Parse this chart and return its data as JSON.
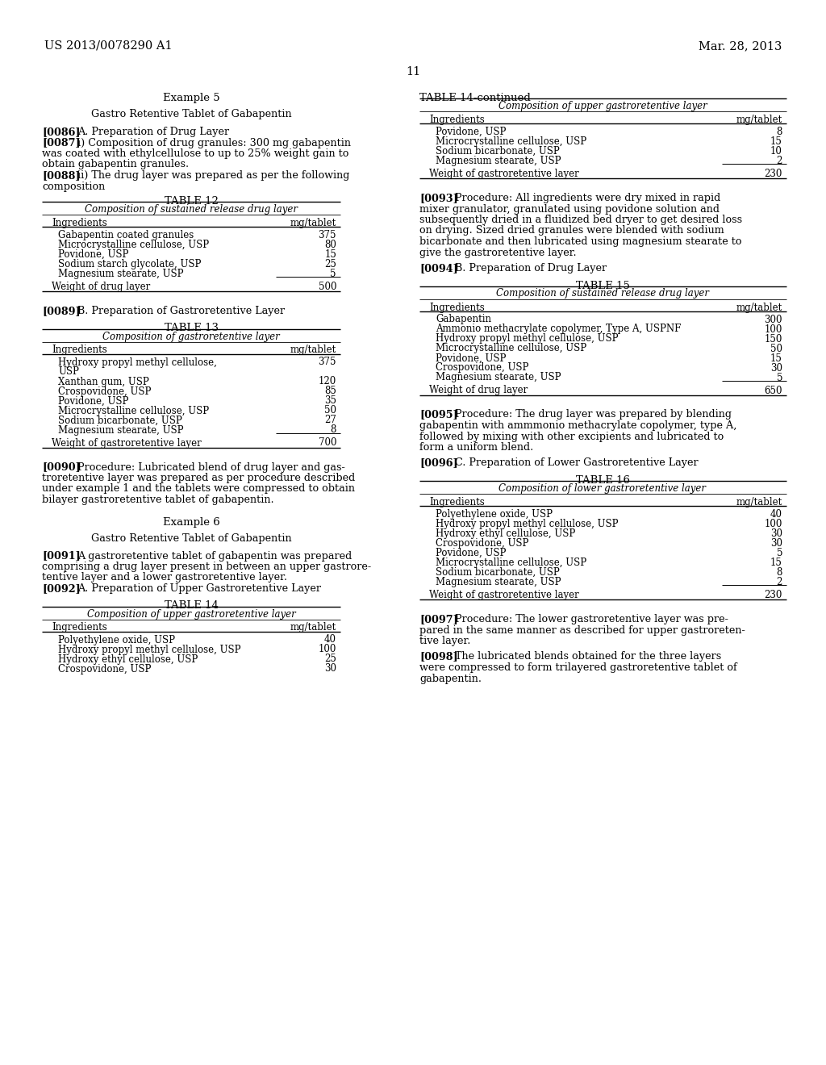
{
  "bg_color": "#ffffff",
  "header_left": "US 2013/0078290 A1",
  "header_right": "Mar. 28, 2013",
  "page_number": "11",
  "left_col": {
    "example_title": "Example 5",
    "subtitle": "Gastro Retentive Tablet of Gabapentin",
    "p0086_tag": "[0086]",
    "p0086_text": "A. Preparation of Drug Layer",
    "p0087_tag": "[0087]",
    "p0087_lines": [
      "i) Composition of drug granules: 300 mg gabapentin",
      "was coated with ethylcellulose to up to 25% weight gain to",
      "obtain gabapentin granules."
    ],
    "p0088_tag": "[0088]",
    "p0088_lines": [
      "ii) The drug layer was prepared as per the following",
      "composition"
    ],
    "table12_title": "TABLE 12",
    "table12_subtitle": "Composition of sustained release drug layer",
    "table12_col1": "Ingredients",
    "table12_col2": "mg/tablet",
    "table12_rows": [
      [
        "Gabapentin coated granules",
        "375"
      ],
      [
        "Microcrystalline cellulose, USP",
        "80"
      ],
      [
        "Povidone, USP",
        "15"
      ],
      [
        "Sodium starch glycolate, USP",
        "25"
      ],
      [
        "Magnesium stearate, USP",
        "5"
      ]
    ],
    "table12_total_label": "Weight of drug layer",
    "table12_total_value": "500",
    "p0089_tag": "[0089]",
    "p0089_text": "B. Preparation of Gastroretentive Layer",
    "table13_title": "TABLE 13",
    "table13_subtitle": "Composition of gastroretentive layer",
    "table13_col1": "Ingredients",
    "table13_col2": "mg/tablet",
    "table13_rows": [
      [
        "Hydroxy propyl methyl cellulose,",
        "375"
      ],
      [
        "USP",
        ""
      ],
      [
        "Xanthan gum, USP",
        "120"
      ],
      [
        "Crospovidone, USP",
        "85"
      ],
      [
        "Povidone, USP",
        "35"
      ],
      [
        "Microcrystalline cellulose, USP",
        "50"
      ],
      [
        "Sodium bicarbonate, USP",
        "27"
      ],
      [
        "Magnesium stearate, USP",
        "8"
      ]
    ],
    "table13_total_label": "Weight of gastroretentive layer",
    "table13_total_value": "700",
    "p0090_tag": "[0090]",
    "p0090_lines": [
      "Procedure: Lubricated blend of drug layer and gas-",
      "troretentive layer was prepared as per procedure described",
      "under example 1 and the tablets were compressed to obtain",
      "bilayer gastroretentive tablet of gabapentin."
    ],
    "example6_title": "Example 6",
    "subtitle6": "Gastro Retentive Tablet of Gabapentin",
    "p0091_tag": "[0091]",
    "p0091_lines": [
      "A gastroretentive tablet of gabapentin was prepared",
      "comprising a drug layer present in between an upper gastrore-",
      "tentive layer and a lower gastroretentive layer."
    ],
    "p0092_tag": "[0092]",
    "p0092_text": "A. Preparation of Upper Gastroretentive Layer",
    "table14_title": "TABLE 14",
    "table14_subtitle": "Composition of upper gastroretentive layer",
    "table14_col1": "Ingredients",
    "table14_col2": "mg/tablet",
    "table14_rows": [
      [
        "Polyethylene oxide, USP",
        "40"
      ],
      [
        "Hydroxy propyl methyl cellulose, USP",
        "100"
      ],
      [
        "Hydroxy ethyl cellulose, USP",
        "25"
      ],
      [
        "Crospovidone, USP",
        "30"
      ]
    ]
  },
  "right_col": {
    "table14cont_title": "TABLE 14-continued",
    "table14cont_subtitle": "Composition of upper gastroretentive layer",
    "table14cont_col1": "Ingredients",
    "table14cont_col2": "mg/tablet",
    "table14cont_rows": [
      [
        "Povidone, USP",
        "8"
      ],
      [
        "Microcrystalline cellulose, USP",
        "15"
      ],
      [
        "Sodium bicarbonate, USP",
        "10"
      ],
      [
        "Magnesium stearate, USP",
        "2"
      ]
    ],
    "table14cont_total_label": "Weight of gastroretentive layer",
    "table14cont_total_value": "230",
    "p0093_tag": "[0093]",
    "p0093_lines": [
      "Procedure: All ingredients were dry mixed in rapid",
      "mixer granulator, granulated using povidone solution and",
      "subsequently dried in a fluidized bed dryer to get desired loss",
      "on drying. Sized dried granules were blended with sodium",
      "bicarbonate and then lubricated using magnesium stearate to",
      "give the gastroretentive layer."
    ],
    "p0094_tag": "[0094]",
    "p0094_text": "B. Preparation of Drug Layer",
    "table15_title": "TABLE 15",
    "table15_subtitle": "Composition of sustained release drug layer",
    "table15_col1": "Ingredients",
    "table15_col2": "mg/tablet",
    "table15_rows": [
      [
        "Gabapentin",
        "300"
      ],
      [
        "Ammonio methacrylate copolymer, Type A, USPNF",
        "100"
      ],
      [
        "Hydroxy propyl methyl cellulose, USP",
        "150"
      ],
      [
        "Microcrystalline cellulose, USP",
        "50"
      ],
      [
        "Povidone, USP",
        "15"
      ],
      [
        "Crospovidone, USP",
        "30"
      ],
      [
        "Magnesium stearate, USP",
        "5"
      ]
    ],
    "table15_total_label": "Weight of drug layer",
    "table15_total_value": "650",
    "p0095_tag": "[0095]",
    "p0095_lines": [
      "Procedure: The drug layer was prepared by blending",
      "gabapentin with ammmonio methacrylate copolymer, type A,",
      "followed by mixing with other excipients and lubricated to",
      "form a uniform blend."
    ],
    "p0096_tag": "[0096]",
    "p0096_text": "C. Preparation of Lower Gastroretentive Layer",
    "table16_title": "TABLE 16",
    "table16_subtitle": "Composition of lower gastroretentive layer",
    "table16_col1": "Ingredients",
    "table16_col2": "mg/tablet",
    "table16_rows": [
      [
        "Polyethylene oxide, USP",
        "40"
      ],
      [
        "Hydroxy propyl methyl cellulose, USP",
        "100"
      ],
      [
        "Hydroxy ethyl cellulose, USP",
        "30"
      ],
      [
        "Crospovidone, USP",
        "30"
      ],
      [
        "Povidone, USP",
        "5"
      ],
      [
        "Microcrystalline cellulose, USP",
        "15"
      ],
      [
        "Sodium bicarbonate, USP",
        "8"
      ],
      [
        "Magnesium stearate, USP",
        "2"
      ]
    ],
    "table16_total_label": "Weight of gastroretentive layer",
    "table16_total_value": "230",
    "p0097_tag": "[0097]",
    "p0097_lines": [
      "Procedure: The lower gastroretentive layer was pre-",
      "pared in the same manner as described for upper gastroreten-",
      "tive layer."
    ],
    "p0098_tag": "[0098]",
    "p0098_lines": [
      "The lubricated blends obtained for the three layers",
      "were compressed to form trilayered gastroretentive tablet of",
      "gabapentin."
    ]
  }
}
